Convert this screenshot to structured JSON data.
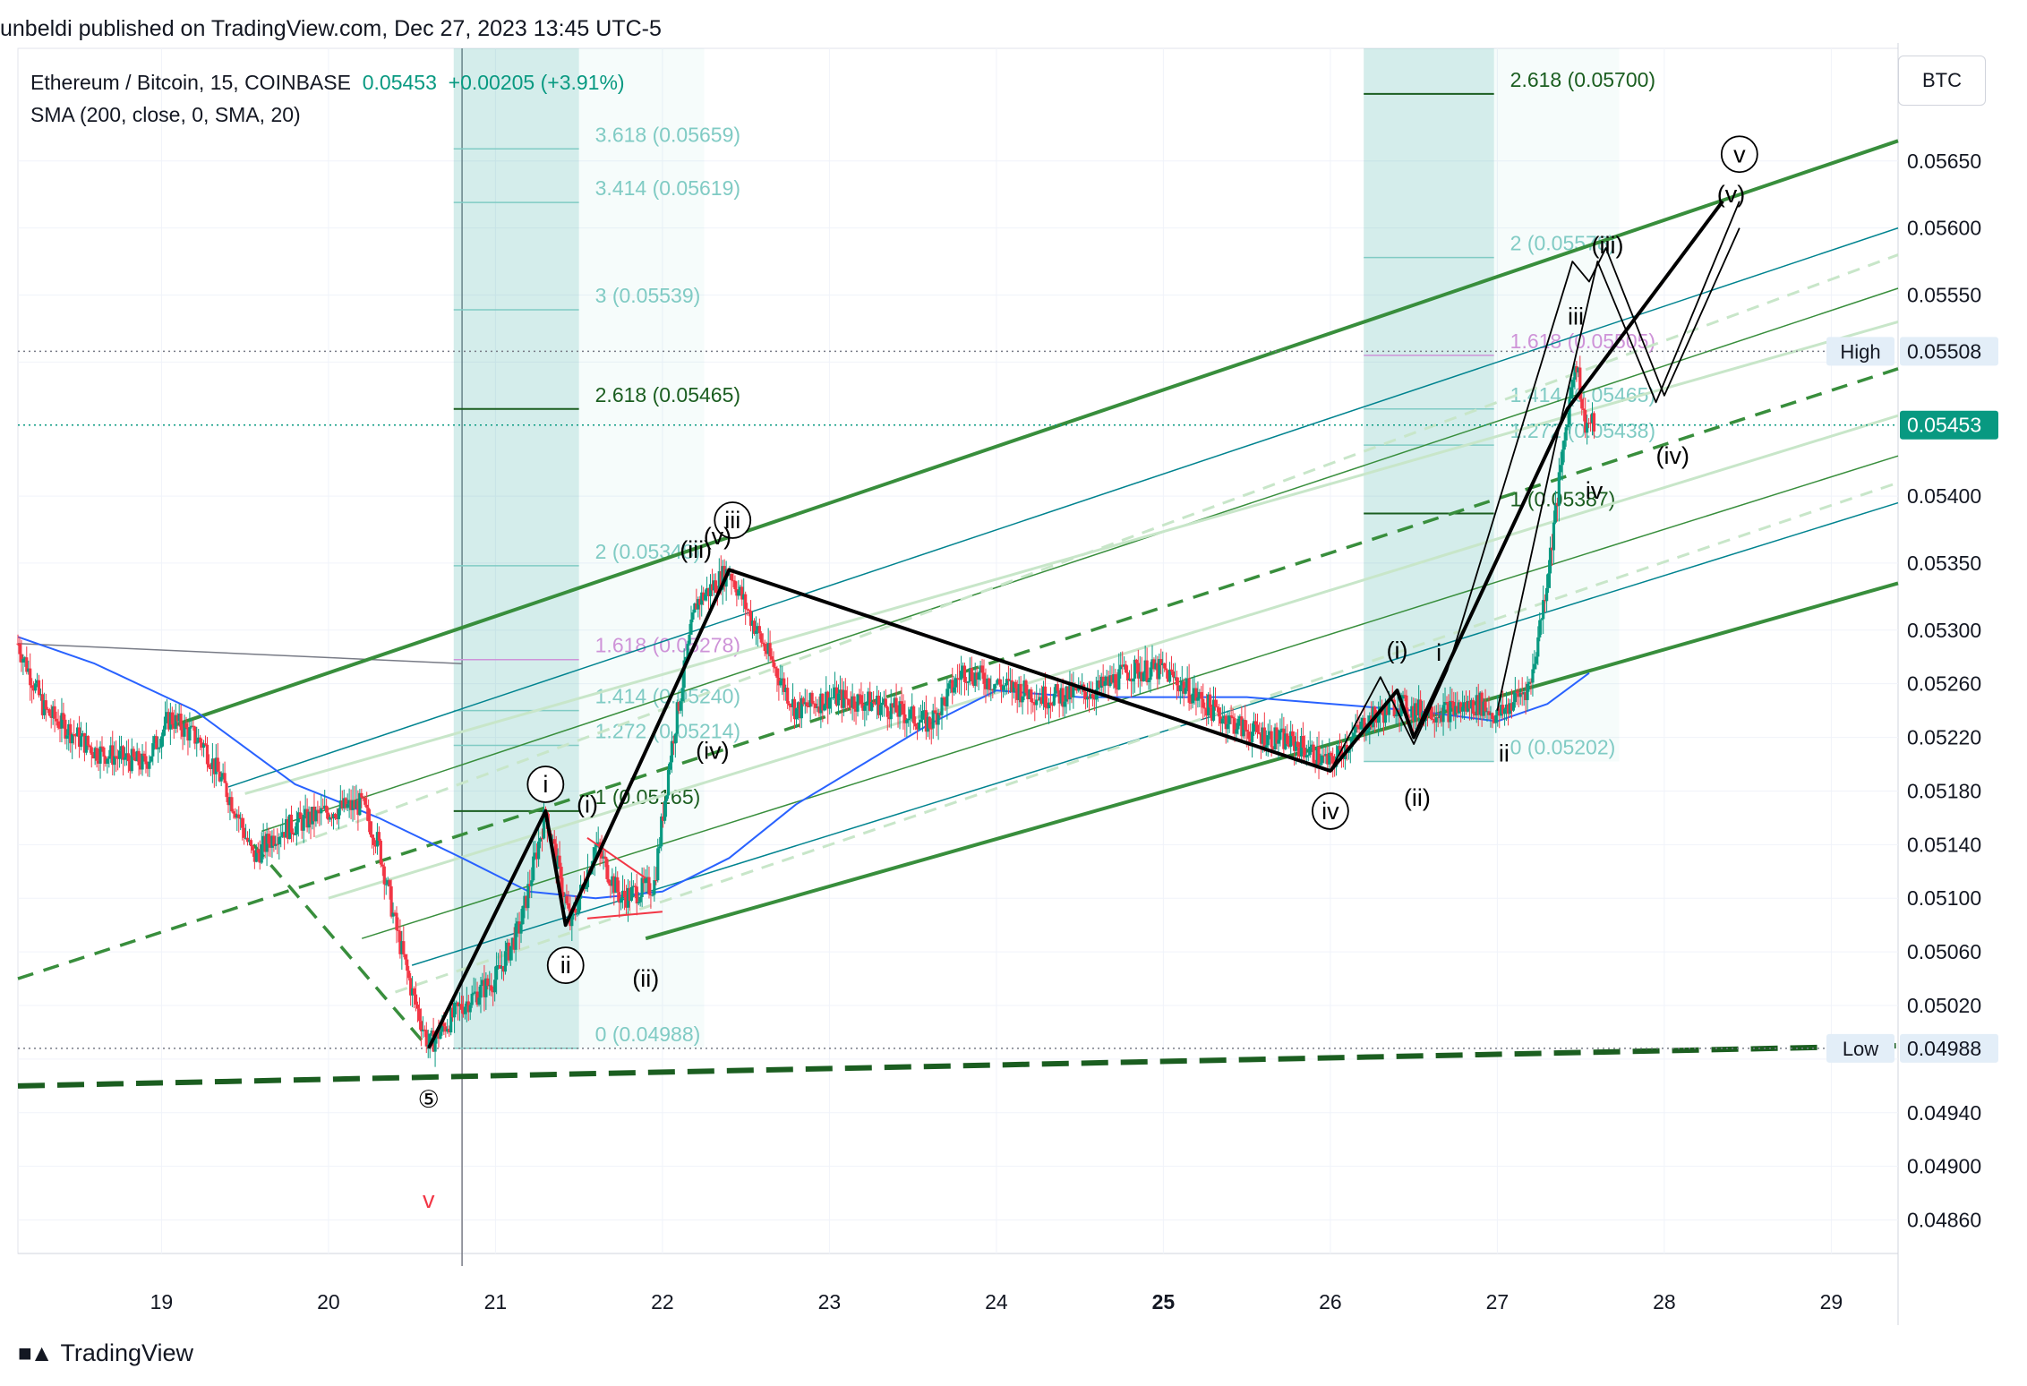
{
  "header": {
    "published": "unbeldi published on TradingView.com, Dec 27, 2023 13:45 UTC-5",
    "symbol_line": "Ethereum / Bitcoin, 15, COINBASE",
    "last_price": "0.05453",
    "change": "+0.00205 (+3.91%)",
    "indicator_line": "SMA (200, close, 0, SMA, 20)",
    "currency": "BTC"
  },
  "brand": {
    "logo_icon": "tradingview-logo-icon",
    "name": "TradingView"
  },
  "colors": {
    "up": "#089981",
    "down": "#f23645",
    "sma": "#2962ff",
    "channel": "#388e3c",
    "fib": "#26a69a",
    "fib_pink": "#ce93d8"
  },
  "chart_data": {
    "type": "candlestick",
    "symbol": "ETHBTC",
    "interval": "15",
    "x_axis": {
      "ticks": [
        {
          "label": "19",
          "x": 19
        },
        {
          "label": "20",
          "x": 20
        },
        {
          "label": "21",
          "x": 21
        },
        {
          "label": "22",
          "x": 22
        },
        {
          "label": "23",
          "x": 23
        },
        {
          "label": "24",
          "x": 24
        },
        {
          "label": "25",
          "x": 25,
          "bold": true
        },
        {
          "label": "26",
          "x": 26
        },
        {
          "label": "27",
          "x": 27
        },
        {
          "label": "28",
          "x": 28
        },
        {
          "label": "29",
          "x": 29
        }
      ],
      "range": [
        18.14,
        29.4
      ]
    },
    "y_axis": {
      "range": [
        0.04835,
        0.05734
      ],
      "ticks": [
        "0.05650",
        "0.05600",
        "0.05550",
        "0.05400",
        "0.05350",
        "0.05300",
        "0.05260",
        "0.05220",
        "0.05180",
        "0.05140",
        "0.05100",
        "0.05060",
        "0.05020",
        "0.04940",
        "0.04900",
        "0.04860"
      ],
      "hidden_ticks": [
        "0.05500",
        "0.04980"
      ],
      "price_labels": [
        {
          "label": "High",
          "value": "0.05508",
          "price": 0.05508
        },
        {
          "label": "",
          "value": "0.05453",
          "price": 0.05453,
          "current": true
        },
        {
          "label": "Low",
          "value": "0.04988",
          "price": 0.04988
        }
      ]
    },
    "price_path": [
      [
        18.14,
        0.0529
      ],
      [
        18.3,
        0.0524
      ],
      [
        18.6,
        0.0521
      ],
      [
        18.9,
        0.052
      ],
      [
        19.05,
        0.05235
      ],
      [
        19.25,
        0.05215
      ],
      [
        19.45,
        0.05165
      ],
      [
        19.55,
        0.0513
      ],
      [
        19.7,
        0.0515
      ],
      [
        20.0,
        0.05165
      ],
      [
        20.2,
        0.0517
      ],
      [
        20.3,
        0.0514
      ],
      [
        20.4,
        0.0508
      ],
      [
        20.5,
        0.0503
      ],
      [
        20.6,
        0.0499
      ],
      [
        20.8,
        0.0502
      ],
      [
        21.0,
        0.0504
      ],
      [
        21.15,
        0.0508
      ],
      [
        21.3,
        0.05165
      ],
      [
        21.45,
        0.0508
      ],
      [
        21.6,
        0.0514
      ],
      [
        21.75,
        0.051
      ],
      [
        21.95,
        0.0511
      ],
      [
        22.05,
        0.0521
      ],
      [
        22.2,
        0.0532
      ],
      [
        22.4,
        0.05345
      ],
      [
        22.6,
        0.0529
      ],
      [
        22.8,
        0.0524
      ],
      [
        23.0,
        0.0525
      ],
      [
        23.3,
        0.05245
      ],
      [
        23.6,
        0.0523
      ],
      [
        23.8,
        0.0527
      ],
      [
        24.0,
        0.0526
      ],
      [
        24.3,
        0.0525
      ],
      [
        24.6,
        0.05255
      ],
      [
        24.8,
        0.0527
      ],
      [
        25.0,
        0.0527
      ],
      [
        25.3,
        0.0524
      ],
      [
        25.5,
        0.05225
      ],
      [
        25.8,
        0.05215
      ],
      [
        26.0,
        0.052
      ],
      [
        26.2,
        0.0523
      ],
      [
        26.4,
        0.05245
      ],
      [
        26.5,
        0.0524
      ],
      [
        26.7,
        0.0524
      ],
      [
        26.9,
        0.05245
      ],
      [
        27.0,
        0.05235
      ],
      [
        27.2,
        0.0526
      ],
      [
        27.3,
        0.0534
      ],
      [
        27.42,
        0.0546
      ],
      [
        27.47,
        0.05505
      ],
      [
        27.52,
        0.05455
      ],
      [
        27.58,
        0.05453
      ]
    ],
    "sma_200": [
      [
        18.14,
        0.05295
      ],
      [
        18.6,
        0.05275
      ],
      [
        19.2,
        0.0524
      ],
      [
        19.8,
        0.05185
      ],
      [
        20.3,
        0.0516
      ],
      [
        20.8,
        0.0513
      ],
      [
        21.2,
        0.05105
      ],
      [
        21.6,
        0.051
      ],
      [
        22.0,
        0.05105
      ],
      [
        22.4,
        0.0513
      ],
      [
        22.8,
        0.0517
      ],
      [
        23.2,
        0.052
      ],
      [
        23.6,
        0.0523
      ],
      [
        24.0,
        0.05255
      ],
      [
        24.5,
        0.0525
      ],
      [
        25.0,
        0.0525
      ],
      [
        25.5,
        0.0525
      ],
      [
        26.0,
        0.05245
      ],
      [
        26.5,
        0.0524
      ],
      [
        27.0,
        0.05232
      ],
      [
        27.3,
        0.05245
      ],
      [
        27.55,
        0.05268
      ]
    ],
    "channels": {
      "outer_top": [
        [
          19.05,
          0.05228
        ],
        [
          29.4,
          0.05665
        ]
      ],
      "outer_bottom": [
        [
          21.9,
          0.0507
        ],
        [
          29.4,
          0.05335
        ]
      ],
      "median_dashed": [
        [
          18.14,
          0.0504
        ],
        [
          29.4,
          0.05495
        ]
      ],
      "parallels": [
        {
          "style": "teal",
          "points": [
            [
              19.4,
              0.05183
            ],
            [
              29.4,
              0.056
            ]
          ]
        },
        {
          "style": "teal",
          "points": [
            [
              20.5,
              0.0505
            ],
            [
              29.4,
              0.05395
            ]
          ]
        },
        {
          "style": "green",
          "points": [
            [
              19.6,
              0.0515
            ],
            [
              29.4,
              0.05555
            ]
          ]
        },
        {
          "style": "green",
          "points": [
            [
              20.2,
              0.0507
            ],
            [
              29.4,
              0.0543
            ]
          ]
        },
        {
          "style": "lightgreen",
          "points": [
            [
              20.0,
              0.051
            ],
            [
              29.4,
              0.0546
            ]
          ]
        },
        {
          "style": "lightgreen",
          "points": [
            [
              19.5,
              0.05178
            ],
            [
              29.4,
              0.0553
            ]
          ]
        },
        {
          "style": "lightgreen-dashed",
          "points": [
            [
              19.8,
              0.0514
            ],
            [
              29.4,
              0.0558
            ]
          ]
        },
        {
          "style": "lightgreen-dashed",
          "points": [
            [
              20.4,
              0.0503
            ],
            [
              29.4,
              0.0541
            ]
          ]
        }
      ],
      "support_dashed": [
        [
          18.14,
          0.0496
        ],
        [
          29.4,
          0.0499
        ]
      ],
      "gray_line": [
        [
          18.14,
          0.0529
        ],
        [
          20.8,
          0.05275
        ]
      ]
    },
    "fib_extensions": [
      {
        "box": [
          20.75,
          21.5,
          0.04988,
          0.05734
        ],
        "levels": [
          {
            "label": "3.618 (0.05659)",
            "price": 0.05659
          },
          {
            "label": "3.414 (0.05619)",
            "price": 0.05619
          },
          {
            "label": "3 (0.05539)",
            "price": 0.05539
          },
          {
            "label": "2.618 (0.05465)",
            "price": 0.05465,
            "dark": true
          },
          {
            "label": "2 (0.05348)",
            "price": 0.05348
          },
          {
            "label": "1.618 (0.05278)",
            "price": 0.05278,
            "pink": true
          },
          {
            "label": "1.414 (0.05240)",
            "price": 0.0524
          },
          {
            "label": "1.272 (0.05214)",
            "price": 0.05214
          },
          {
            "label": "1 (0.05165)",
            "price": 0.05165,
            "dark": true
          },
          {
            "label": "0 (0.04988)",
            "price": 0.04988
          }
        ]
      },
      {
        "box": [
          26.2,
          26.98,
          0.05202,
          0.05734
        ],
        "levels": [
          {
            "label": "2.618 (0.05700)",
            "price": 0.057,
            "dark": true
          },
          {
            "label": "2 (0.05578)",
            "price": 0.05578
          },
          {
            "label": "1.618 (0.05505)",
            "price": 0.05505,
            "pink": true
          },
          {
            "label": "1.414 (0.05465)",
            "price": 0.05465
          },
          {
            "label": "1.272 (0.05438)",
            "price": 0.05438
          },
          {
            "label": "1 (0.05387)",
            "price": 0.05387,
            "dark": true
          },
          {
            "label": "0 (0.05202)",
            "price": 0.05202
          }
        ]
      }
    ],
    "wave_paths": [
      {
        "width": 4,
        "points": [
          [
            20.6,
            0.04988
          ],
          [
            21.3,
            0.05165
          ],
          [
            21.42,
            0.0508
          ],
          [
            22.4,
            0.05345
          ],
          [
            26.0,
            0.05195
          ],
          [
            26.4,
            0.05255
          ],
          [
            26.5,
            0.0522
          ],
          [
            27.42,
            0.05465
          ],
          [
            28.35,
            0.0562
          ]
        ]
      },
      {
        "width": 1.8,
        "points": [
          [
            26.0,
            0.05195
          ],
          [
            26.3,
            0.05265
          ],
          [
            26.5,
            0.05215
          ],
          [
            26.7,
            0.0527
          ],
          [
            27.45,
            0.05575
          ],
          [
            27.55,
            0.0556
          ],
          [
            27.65,
            0.05585
          ],
          [
            28.0,
            0.05475
          ],
          [
            28.45,
            0.056
          ]
        ]
      },
      {
        "width": 1.8,
        "points": [
          [
            27.0,
            0.0524
          ],
          [
            27.35,
            0.0544
          ],
          [
            27.6,
            0.05575
          ],
          [
            27.95,
            0.0547
          ],
          [
            28.45,
            0.0562
          ]
        ]
      }
    ],
    "red_wedge": [
      [
        [
          21.55,
          0.05145
        ],
        [
          21.9,
          0.05115
        ]
      ],
      [
        [
          21.55,
          0.05085
        ],
        [
          22.0,
          0.0509
        ]
      ]
    ],
    "wave_labels": [
      {
        "text": "i",
        "x": 21.3,
        "price": 0.05185,
        "circled": true
      },
      {
        "text": "ii",
        "x": 21.42,
        "price": 0.0505,
        "circled": true
      },
      {
        "text": "iii",
        "x": 22.42,
        "price": 0.05382,
        "circled": true
      },
      {
        "text": "iv",
        "x": 26.0,
        "price": 0.05165,
        "circled": true
      },
      {
        "text": "v",
        "x": 28.45,
        "price": 0.05655,
        "circled": true
      },
      {
        "text": "⑤",
        "x": 20.6,
        "price": 0.0495
      },
      {
        "text": "v",
        "x": 20.6,
        "price": 0.04875,
        "red": true
      },
      {
        "text": "(i)",
        "x": 21.55,
        "price": 0.0517
      },
      {
        "text": "(ii)",
        "x": 21.9,
        "price": 0.0504
      },
      {
        "text": "(iii)",
        "x": 22.2,
        "price": 0.0536
      },
      {
        "text": "(iv)",
        "x": 22.3,
        "price": 0.0521
      },
      {
        "text": "(v)",
        "x": 22.33,
        "price": 0.0537
      },
      {
        "text": "(i)",
        "x": 26.4,
        "price": 0.05285
      },
      {
        "text": "(ii)",
        "x": 26.52,
        "price": 0.05175
      },
      {
        "text": "i",
        "x": 26.65,
        "price": 0.05283
      },
      {
        "text": "ii",
        "x": 27.04,
        "price": 0.05208
      },
      {
        "text": "iii",
        "x": 27.47,
        "price": 0.05534
      },
      {
        "text": "iv",
        "x": 27.58,
        "price": 0.05404
      },
      {
        "text": "(iii)",
        "x": 27.66,
        "price": 0.05587
      },
      {
        "text": "(iv)",
        "x": 28.05,
        "price": 0.0543
      },
      {
        "text": "(v)",
        "x": 28.4,
        "price": 0.05625
      }
    ]
  }
}
